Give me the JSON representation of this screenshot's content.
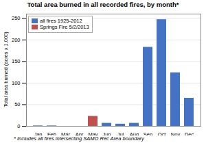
{
  "chart_data": {
    "type": "bar",
    "title": "Total area burned in all recorded fires, by month*",
    "footnote": "* Includes all fires intersecting SAMO Rec Area boundary",
    "ylabel": "Total area burned (acres x 1,000)",
    "categories": [
      "Jan",
      "Feb",
      "Mar",
      "Apr",
      "May",
      "Jun",
      "Jul",
      "Aug",
      "Sep",
      "Oct",
      "Nov",
      "Dec"
    ],
    "series": [
      {
        "name": "all fires 1925-2012",
        "color": "#4472C4",
        "values": [
          1,
          1,
          0,
          0,
          0,
          7,
          5,
          7,
          183,
          247,
          124,
          65
        ]
      },
      {
        "name": "Springs Fire 5/2/2013",
        "color": "#C0504D",
        "values": [
          0,
          0,
          0,
          0,
          23,
          0,
          0,
          0,
          0,
          0,
          0,
          0
        ]
      }
    ],
    "ylim": [
      0,
      260
    ],
    "yticks": [
      0,
      50,
      100,
      150,
      200,
      250
    ],
    "grid": true,
    "legend": "upper left"
  }
}
